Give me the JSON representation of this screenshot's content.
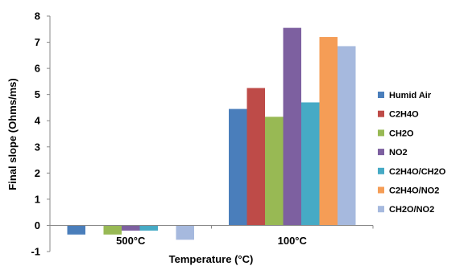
{
  "chart_data": {
    "type": "bar",
    "title": "",
    "xlabel": "Temperature (°C)",
    "ylabel": "Final slope (Ohms/ms)",
    "ylim": [
      -1,
      8
    ],
    "yticks": [
      -1,
      0,
      1,
      2,
      3,
      4,
      5,
      6,
      7,
      8
    ],
    "categories": [
      "500°C",
      "100°C"
    ],
    "grid": false,
    "legend_position": "right",
    "series": [
      {
        "name": "Humid Air",
        "color": "#4a7ebb",
        "values": [
          -0.35,
          4.45
        ]
      },
      {
        "name": "C2H4O",
        "color": "#be4b48",
        "values": [
          0.0,
          5.25
        ]
      },
      {
        "name": "CH2O",
        "color": "#98b954",
        "values": [
          -0.35,
          4.15
        ]
      },
      {
        "name": "NO2",
        "color": "#7d60a0",
        "values": [
          -0.2,
          7.55
        ]
      },
      {
        "name": "C2H4O/CH2O",
        "color": "#46aac5",
        "values": [
          -0.2,
          4.7
        ]
      },
      {
        "name": "C2H4O/NO2",
        "color": "#f59d56",
        "values": [
          0.0,
          7.2
        ]
      },
      {
        "name": "CH2O/NO2",
        "color": "#a6b9de",
        "values": [
          -0.55,
          6.85
        ]
      }
    ]
  }
}
